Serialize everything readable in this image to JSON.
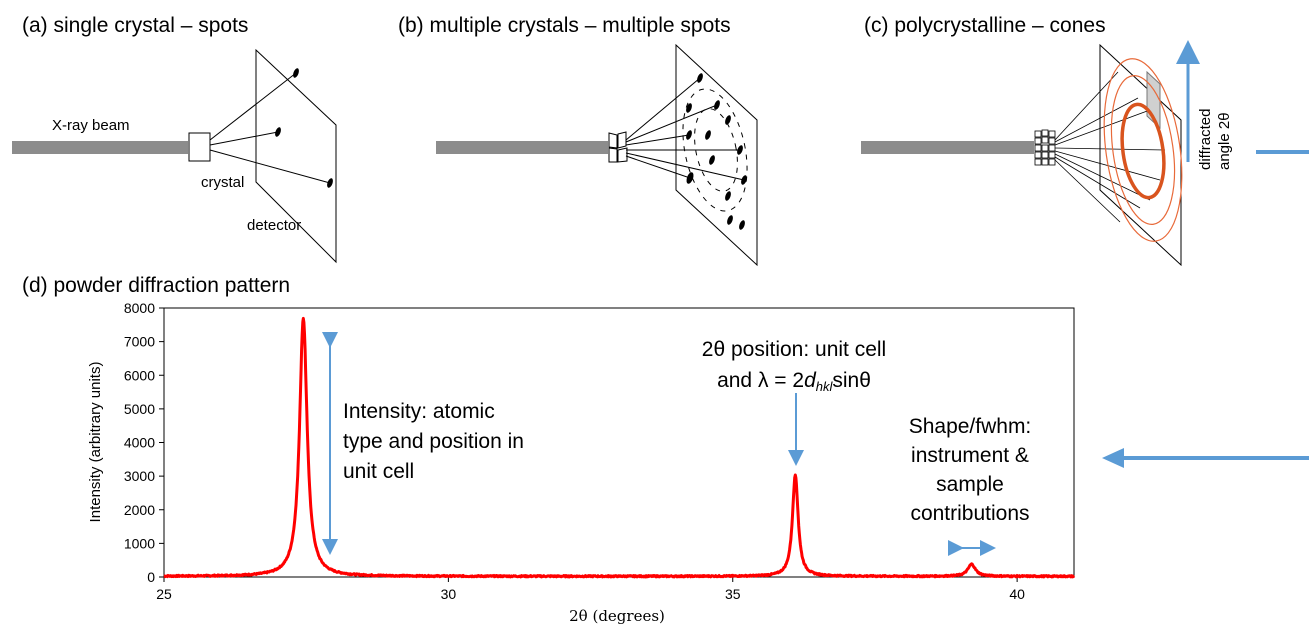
{
  "panels": {
    "a": {
      "title": "(a) single crystal – spots",
      "beam_label": "X-ray beam",
      "crystal_label": "crystal",
      "detector_label": "detector"
    },
    "b": {
      "title": "(b) multiple crystals – multiple spots"
    },
    "c": {
      "title": "(c) polycrystalline – cones",
      "angle_label_line1": "diffracted",
      "angle_label_line2": "angle 2θ"
    },
    "d": {
      "title": "(d) powder diffraction pattern"
    }
  },
  "annotations": {
    "intensity": [
      "Intensity: atomic",
      "type and position in",
      "unit cell"
    ],
    "position": {
      "line1": "2θ position: unit cell",
      "line2_prefix": "and  λ = 2",
      "line2_d": "d",
      "line2_sub": "hkl",
      "line2_suffix": "sinθ"
    },
    "shape": [
      "Shape/fwhm:",
      "instrument &",
      "sample",
      "contributions"
    ]
  },
  "colors": {
    "beam": "#8c8c8c",
    "curve": "#ff0000",
    "arrow": "#5b9bd5",
    "ring": "#e86a3a",
    "ring_bold": "#d9541e"
  },
  "chart_data": {
    "type": "line",
    "xlabel": "2θ (degrees)",
    "ylabel": "Intensity (arbitrary units)",
    "xlim": [
      25,
      41
    ],
    "ylim": [
      0,
      8000
    ],
    "xticks": [
      25,
      30,
      35,
      40
    ],
    "yticks": [
      0,
      1000,
      2000,
      3000,
      4000,
      5000,
      6000,
      7000,
      8000
    ],
    "grid": false,
    "series": [
      {
        "peaks": [
          {
            "x": 27.45,
            "y": 7700
          },
          {
            "x": 36.1,
            "y": 3050
          },
          {
            "x": 39.2,
            "y": 380
          }
        ],
        "baseline": 20
      }
    ]
  }
}
